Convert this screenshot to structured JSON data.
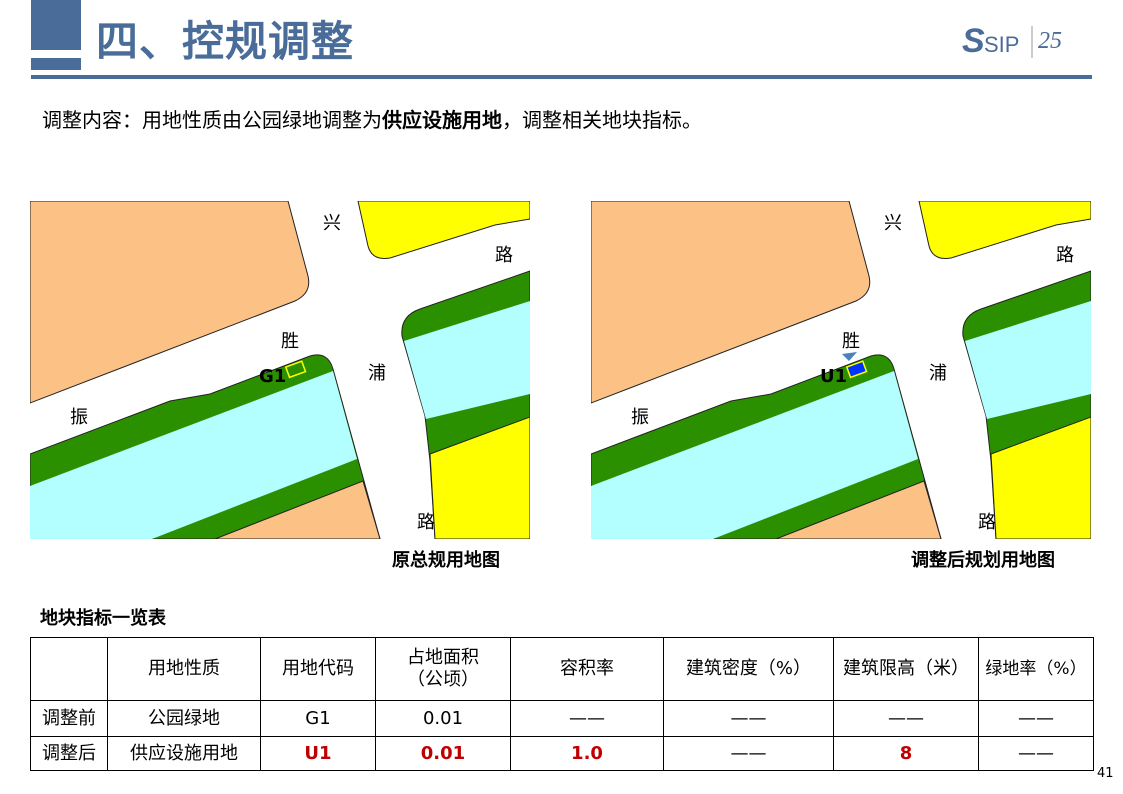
{
  "header": {
    "title": "四、控规调整",
    "logo_text": "SIP",
    "logo_year": "25"
  },
  "intro": {
    "prefix": "调整内容：用地性质由公园绿地调整为",
    "bold": "供应设施用地",
    "suffix": "，调整相关地块指标。"
  },
  "maps": [
    {
      "caption": "原总规用地图",
      "plot_label": "G1",
      "roads": [
        "兴",
        "路",
        "胜",
        "浦",
        "振",
        "路"
      ]
    },
    {
      "caption": "调整后规划用地图",
      "plot_label": "U1",
      "roads": [
        "兴",
        "路",
        "胜",
        "浦",
        "振",
        "路"
      ]
    }
  ],
  "colors": {
    "accent": "#4a6c99",
    "residential": "#fbc185",
    "park_green": "#2a9000",
    "water": "#b3ffff",
    "commercial": "#ffff00",
    "utility": "#0033ff",
    "highlight": "#c00000"
  },
  "table": {
    "title": "地块指标一览表",
    "headers": [
      "",
      "用地性质",
      "用地代码",
      "占地面积\n（公顷）",
      "容积率",
      "建筑密度（%）",
      "建筑限高（米）",
      "绿地率（%）"
    ],
    "rows": [
      [
        "调整前",
        "公园绿地",
        "G1",
        "0.01",
        "——",
        "——",
        "——",
        "——"
      ],
      [
        "调整后",
        "供应设施用地",
        "U1",
        "0.01",
        "1.0",
        "——",
        "8",
        "——"
      ]
    ]
  },
  "page_number": "41"
}
